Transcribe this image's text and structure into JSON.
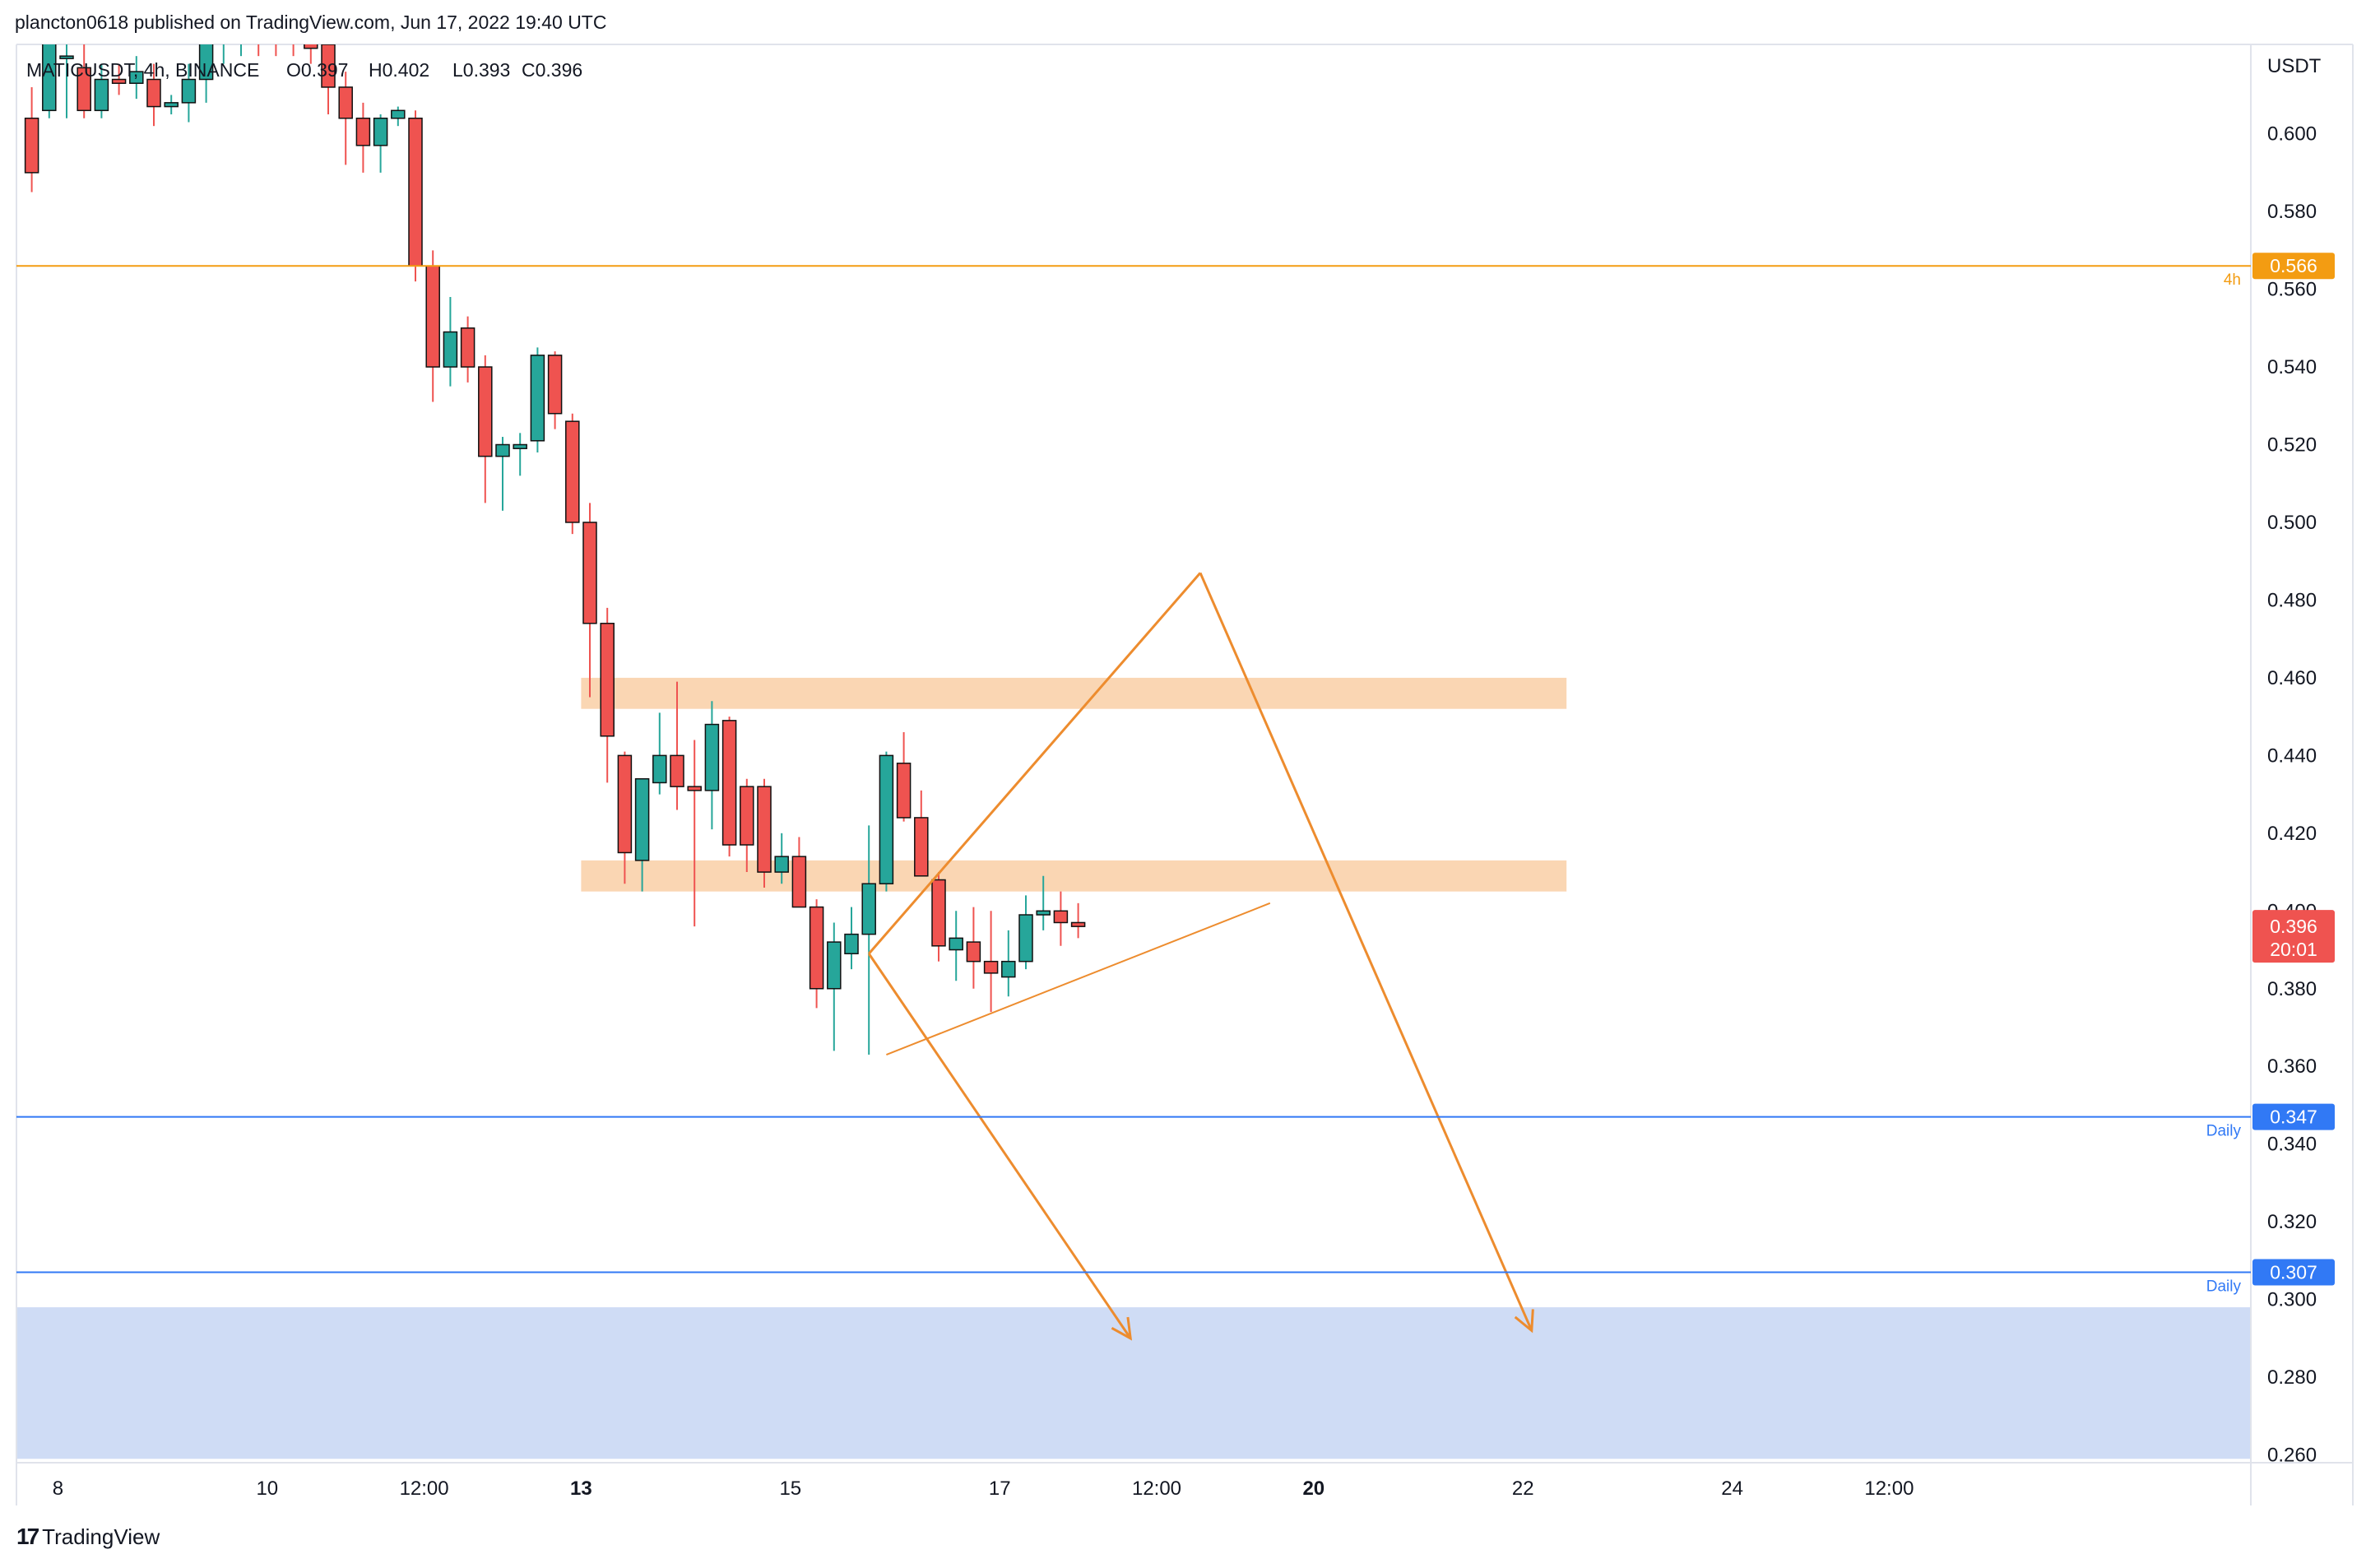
{
  "header": {
    "published_text": "plancton0618 published on TradingView.com, Jun 17, 2022 19:40 UTC"
  },
  "legend": {
    "symbol_text": "MATICUSDT, 4h, BINANCE",
    "open": "O0.397",
    "high": "H0.402",
    "low": "L0.393",
    "close": "C0.396"
  },
  "footer": {
    "logo_glyph": "17",
    "brand": "TradingView"
  },
  "colors": {
    "up": "#26a69a",
    "down": "#ef5350",
    "orange": "#f0a04a",
    "zone": "#f9cfa6",
    "blue_line": "#3179f5",
    "blue_zone": "#cfdcf5",
    "arrow": "#ed8c2e"
  },
  "chart_data": {
    "type": "candlestick",
    "symbol": "MATICUSDT",
    "interval": "4h",
    "exchange": "BINANCE",
    "currency_label": "USDT",
    "ylim": [
      0.258,
      0.623
    ],
    "y_ticks": [
      "0.600",
      "0.580",
      "0.560",
      "0.540",
      "0.520",
      "0.500",
      "0.480",
      "0.460",
      "0.440",
      "0.420",
      "0.400",
      "0.380",
      "0.360",
      "0.340",
      "0.320",
      "0.300",
      "0.280",
      "0.260"
    ],
    "x_ticks": [
      {
        "label": "8",
        "idx": 1.5,
        "bold": false
      },
      {
        "label": "10",
        "idx": 13.5,
        "bold": false
      },
      {
        "label": "12:00",
        "idx": 22.5,
        "bold": false
      },
      {
        "label": "13",
        "idx": 31.5,
        "bold": true
      },
      {
        "label": "15",
        "idx": 43.5,
        "bold": false
      },
      {
        "label": "17",
        "idx": 55.5,
        "bold": false
      },
      {
        "label": "12:00",
        "idx": 64.5,
        "bold": false
      },
      {
        "label": "20",
        "idx": 73.5,
        "bold": true
      },
      {
        "label": "22",
        "idx": 85.5,
        "bold": false
      },
      {
        "label": "24",
        "idx": 97.5,
        "bold": false
      },
      {
        "label": "12:00",
        "idx": 106.5,
        "bold": false
      }
    ],
    "candles": [
      [
        0.604,
        0.612,
        0.585,
        0.59
      ],
      [
        0.606,
        0.63,
        0.604,
        0.627
      ],
      [
        0.62,
        0.63,
        0.604,
        0.62
      ],
      [
        0.617,
        0.626,
        0.604,
        0.606
      ],
      [
        0.606,
        0.618,
        0.604,
        0.614
      ],
      [
        0.614,
        0.618,
        0.61,
        0.613
      ],
      [
        0.613,
        0.62,
        0.609,
        0.616
      ],
      [
        0.614,
        0.618,
        0.602,
        0.607
      ],
      [
        0.607,
        0.61,
        0.605,
        0.608
      ],
      [
        0.608,
        0.618,
        0.603,
        0.614
      ],
      [
        0.614,
        0.626,
        0.608,
        0.624
      ],
      [
        0.624,
        0.63,
        0.618,
        0.626
      ],
      [
        0.625,
        0.629,
        0.62,
        0.627
      ],
      [
        0.628,
        0.632,
        0.62,
        0.625
      ],
      [
        0.625,
        0.628,
        0.62,
        0.624
      ],
      [
        0.626,
        0.632,
        0.62,
        0.624
      ],
      [
        0.625,
        0.628,
        0.618,
        0.622
      ],
      [
        0.623,
        0.64,
        0.605,
        0.612
      ],
      [
        0.612,
        0.616,
        0.592,
        0.604
      ],
      [
        0.604,
        0.608,
        0.59,
        0.597
      ],
      [
        0.597,
        0.605,
        0.59,
        0.604
      ],
      [
        0.604,
        0.607,
        0.602,
        0.606
      ],
      [
        0.604,
        0.606,
        0.562,
        0.566
      ],
      [
        0.566,
        0.57,
        0.531,
        0.54
      ],
      [
        0.54,
        0.558,
        0.535,
        0.549
      ],
      [
        0.55,
        0.553,
        0.536,
        0.54
      ],
      [
        0.54,
        0.543,
        0.505,
        0.517
      ],
      [
        0.517,
        0.522,
        0.503,
        0.52
      ],
      [
        0.519,
        0.523,
        0.512,
        0.52
      ],
      [
        0.521,
        0.545,
        0.518,
        0.543
      ],
      [
        0.543,
        0.544,
        0.524,
        0.528
      ],
      [
        0.526,
        0.528,
        0.497,
        0.5
      ],
      [
        0.5,
        0.505,
        0.455,
        0.474
      ],
      [
        0.474,
        0.478,
        0.433,
        0.445
      ],
      [
        0.44,
        0.441,
        0.407,
        0.415
      ],
      [
        0.413,
        0.432,
        0.405,
        0.434
      ],
      [
        0.433,
        0.451,
        0.43,
        0.44
      ],
      [
        0.44,
        0.459,
        0.426,
        0.432
      ],
      [
        0.432,
        0.444,
        0.396,
        0.431
      ],
      [
        0.431,
        0.454,
        0.421,
        0.448
      ],
      [
        0.449,
        0.45,
        0.414,
        0.417
      ],
      [
        0.432,
        0.434,
        0.41,
        0.417
      ],
      [
        0.432,
        0.434,
        0.406,
        0.41
      ],
      [
        0.41,
        0.42,
        0.407,
        0.414
      ],
      [
        0.414,
        0.419,
        0.403,
        0.401
      ],
      [
        0.401,
        0.403,
        0.375,
        0.38
      ],
      [
        0.38,
        0.397,
        0.364,
        0.392
      ],
      [
        0.389,
        0.401,
        0.385,
        0.394
      ],
      [
        0.394,
        0.422,
        0.363,
        0.407
      ],
      [
        0.407,
        0.441,
        0.405,
        0.44
      ],
      [
        0.438,
        0.446,
        0.423,
        0.424
      ],
      [
        0.424,
        0.431,
        0.409,
        0.409
      ],
      [
        0.408,
        0.41,
        0.387,
        0.391
      ],
      [
        0.39,
        0.4,
        0.382,
        0.393
      ],
      [
        0.392,
        0.401,
        0.38,
        0.387
      ],
      [
        0.387,
        0.4,
        0.374,
        0.384
      ],
      [
        0.383,
        0.395,
        0.378,
        0.387
      ],
      [
        0.387,
        0.404,
        0.385,
        0.399
      ],
      [
        0.399,
        0.409,
        0.395,
        0.4
      ],
      [
        0.4,
        0.405,
        0.391,
        0.397
      ],
      [
        0.397,
        0.402,
        0.393,
        0.396
      ]
    ],
    "horizontal_lines": [
      {
        "price": 0.566,
        "label": "0.566",
        "tag": "4h",
        "color": "#f39c12"
      },
      {
        "price": 0.347,
        "label": "0.347",
        "tag": "Daily",
        "color": "#3179f5"
      },
      {
        "price": 0.307,
        "label": "0.307",
        "tag": "Daily",
        "color": "#3179f5"
      }
    ],
    "last_price": {
      "label": "0.396",
      "countdown": "20:01"
    },
    "zones": [
      {
        "from_idx": 32,
        "to_idx": 88.5,
        "low": 0.452,
        "high": 0.46
      },
      {
        "from_idx": 32,
        "to_idx": 88.5,
        "low": 0.405,
        "high": 0.413
      }
    ],
    "blue_zone": {
      "low": 0.259,
      "high": 0.298
    },
    "trendlines": [
      {
        "from": [
          49,
          0.363
        ],
        "to": [
          71,
          0.402
        ]
      },
      {
        "from": [
          48,
          0.389
        ],
        "to": [
          67,
          0.487
        ]
      },
      {
        "from": [
          67,
          0.487
        ],
        "to": [
          86,
          0.292
        ]
      }
    ],
    "arrows": [
      {
        "from": [
          48,
          0.389
        ],
        "to": [
          63,
          0.29
        ]
      }
    ]
  }
}
